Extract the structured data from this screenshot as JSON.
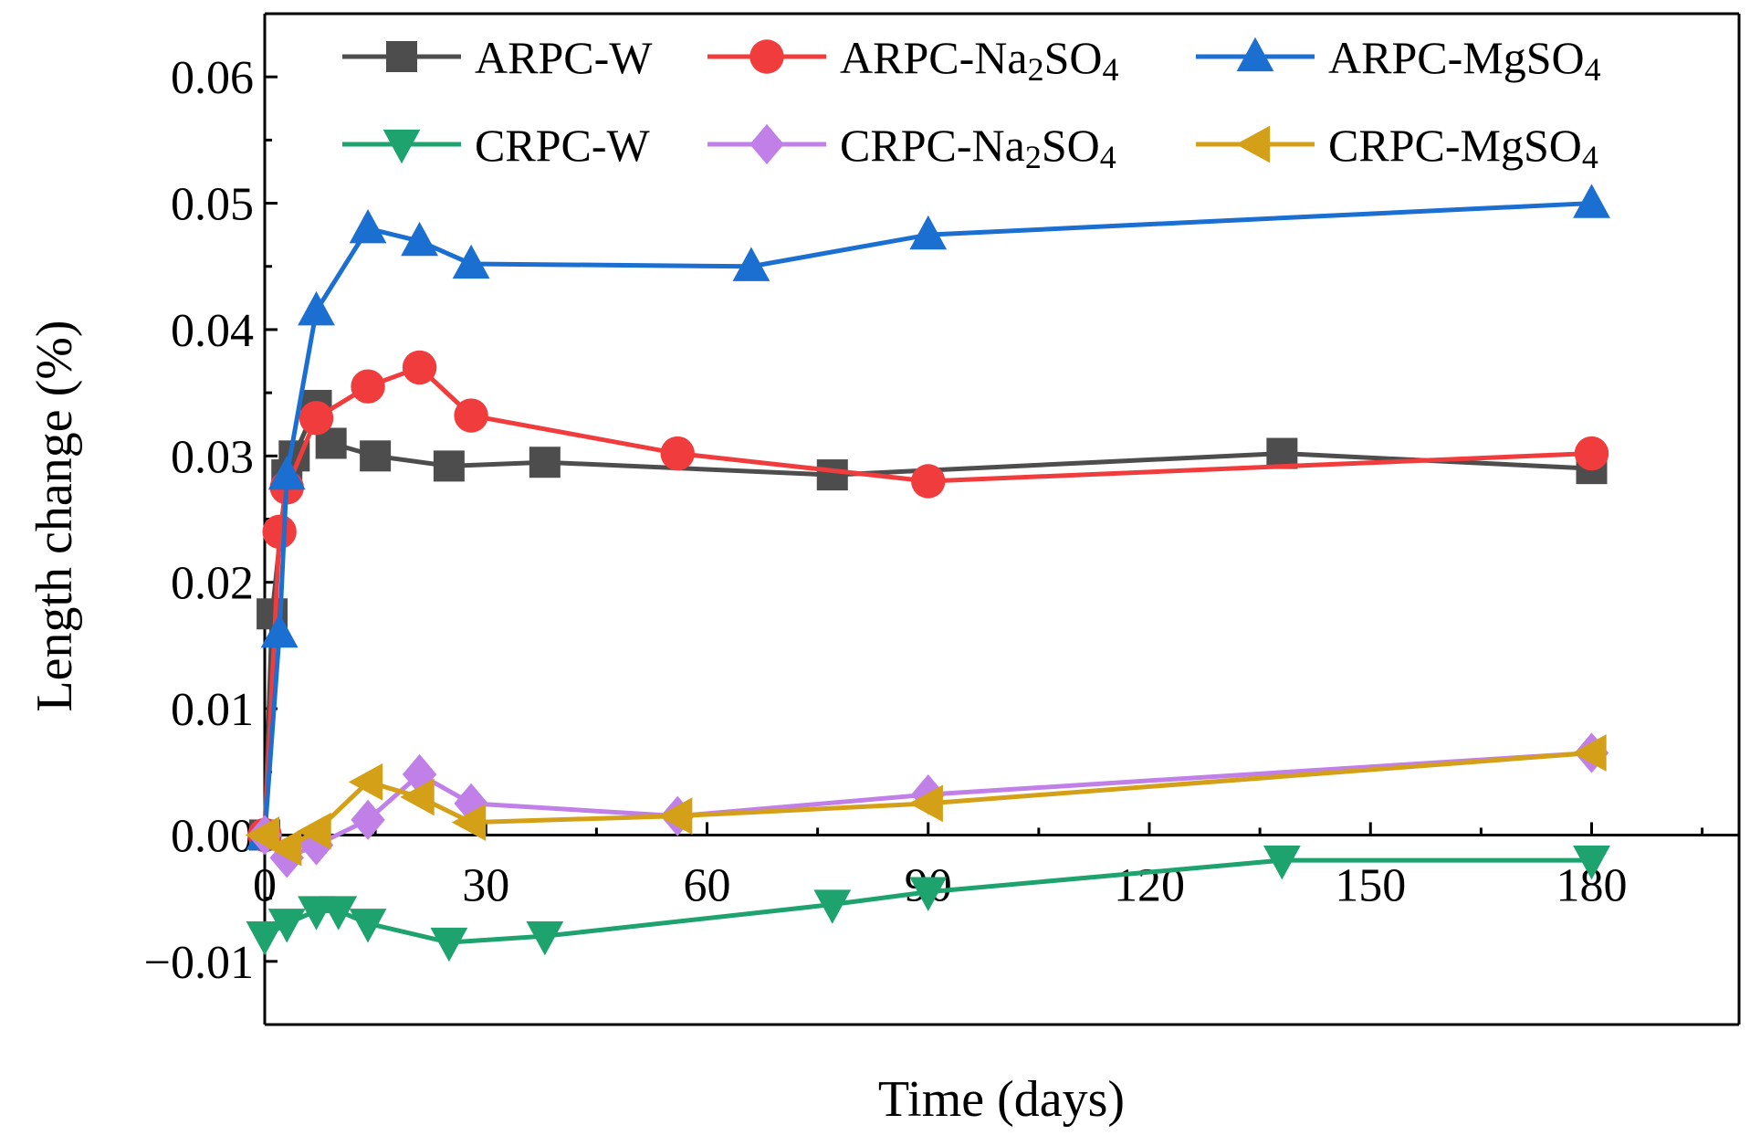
{
  "chart_data": {
    "type": "line",
    "title": "",
    "xlabel": "Time (days)",
    "ylabel": "Length change (%)",
    "xlim": [
      0,
      200
    ],
    "ylim": [
      -0.015,
      0.065
    ],
    "xticks": [
      0,
      30,
      60,
      90,
      120,
      150,
      180
    ],
    "xtick_labels": [
      "0",
      "30",
      "60",
      "90",
      "120",
      "150",
      "180"
    ],
    "yticks": [
      -0.01,
      0.0,
      0.01,
      0.02,
      0.03,
      0.04,
      0.05,
      0.06
    ],
    "ytick_labels": [
      "−0.01",
      "0.00",
      "0.01",
      "0.02",
      "0.03",
      "0.04",
      "0.05",
      "0.06"
    ],
    "grid": false,
    "legend_position": "top",
    "series": [
      {
        "name": "ARPC-W",
        "label_parts": [
          "ARPC-W"
        ],
        "color": "#4d4d4d",
        "marker": "square",
        "x": [
          0,
          1,
          3,
          4,
          7,
          9,
          15,
          25,
          38,
          77,
          138,
          180
        ],
        "y": [
          0.0,
          0.0175,
          0.0285,
          0.03,
          0.034,
          0.031,
          0.03,
          0.0292,
          0.0295,
          0.0285,
          0.0302,
          0.029
        ]
      },
      {
        "name": "ARPC-Na2SO4",
        "label_parts": [
          "ARPC-Na",
          "2",
          "SO",
          "4"
        ],
        "color": "#f03c3c",
        "marker": "circle",
        "x": [
          0,
          2,
          3,
          7,
          14,
          21,
          28,
          56,
          90,
          180
        ],
        "y": [
          0.0,
          0.024,
          0.0275,
          0.033,
          0.0355,
          0.037,
          0.0332,
          0.0302,
          0.028,
          0.0302
        ]
      },
      {
        "name": "ARPC-MgSO4",
        "label_parts": [
          "ARPC-MgSO",
          "4"
        ],
        "color": "#1a6fd1",
        "marker": "triangle-up",
        "x": [
          0,
          2,
          3,
          7,
          14,
          21,
          28,
          66,
          90,
          180
        ],
        "y": [
          0.0,
          0.016,
          0.0285,
          0.0415,
          0.048,
          0.047,
          0.0452,
          0.045,
          0.0475,
          0.05
        ]
      },
      {
        "name": "CRPC-W",
        "label_parts": [
          "CRPC-W"
        ],
        "color": "#1ea36e",
        "marker": "triangle-down",
        "x": [
          0,
          3,
          7,
          10,
          14,
          25,
          38,
          77,
          90,
          138,
          180
        ],
        "y": [
          -0.008,
          -0.007,
          -0.006,
          -0.006,
          -0.007,
          -0.0085,
          -0.008,
          -0.0055,
          -0.0045,
          -0.002,
          -0.002
        ]
      },
      {
        "name": "CRPC-Na2SO4",
        "label_parts": [
          "CRPC-Na",
          "2",
          "SO",
          "4"
        ],
        "color": "#c080e8",
        "marker": "diamond",
        "x": [
          0,
          3,
          7,
          14,
          21,
          28,
          56,
          90,
          180
        ],
        "y": [
          0.0,
          -0.0018,
          -0.0008,
          0.0012,
          0.0048,
          0.0025,
          0.0015,
          0.0032,
          0.0065
        ]
      },
      {
        "name": "CRPC-MgSO4",
        "label_parts": [
          "CRPC-MgSO",
          "4"
        ],
        "color": "#d4a017",
        "marker": "triangle-left",
        "x": [
          0,
          3,
          7,
          14,
          21,
          28,
          56,
          90,
          180
        ],
        "y": [
          0.0,
          -0.001,
          0.0003,
          0.0042,
          0.003,
          0.001,
          0.0015,
          0.0025,
          0.0065
        ]
      }
    ]
  }
}
